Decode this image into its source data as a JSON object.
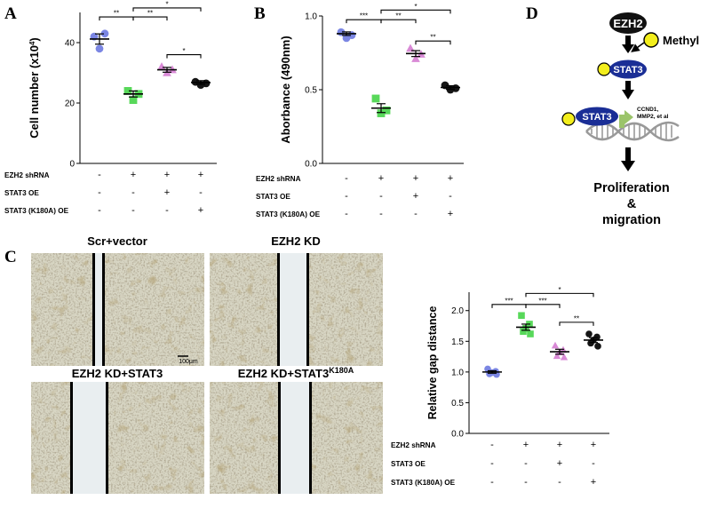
{
  "colors": {
    "blue": "#7b86e3",
    "green": "#58d85a",
    "purple": "#d98ad6",
    "black": "#151515",
    "yellow": "#f3ee1c",
    "navy": "#1a2e96",
    "arrow_green": "#9bc46a"
  },
  "panels": {
    "A": {
      "letter": "A"
    },
    "B": {
      "letter": "B"
    },
    "C": {
      "letter": "C"
    },
    "D": {
      "letter": "D"
    }
  },
  "conditions": {
    "row_labels": [
      "EZH2 shRNA",
      "STAT3 OE",
      "STAT3 (K180A) OE"
    ],
    "marks": [
      [
        "-",
        "+",
        "+",
        "+"
      ],
      [
        "-",
        "-",
        "+",
        "-"
      ],
      [
        "-",
        "-",
        "-",
        "+"
      ]
    ]
  },
  "chart_data": [
    {
      "panel": "A",
      "type": "scatter",
      "ylabel": "Cell number (x10",
      "ylabel_sup": "4",
      "ylabel_close": ")",
      "ylim": [
        0,
        50
      ],
      "yticks": [
        0,
        20,
        40
      ],
      "series": [
        {
          "group": 1,
          "color": "blue",
          "points": [
            42,
            43,
            38
          ],
          "mean": 41.2,
          "sem": 1.7
        },
        {
          "group": 2,
          "color": "green",
          "points": [
            24,
            23,
            21
          ],
          "mean": 23.0,
          "sem": 1.0
        },
        {
          "group": 3,
          "color": "purple",
          "points": [
            32,
            31,
            30
          ],
          "mean": 31.0,
          "sem": 0.8
        },
        {
          "group": 4,
          "color": "black",
          "points": [
            27,
            26.5,
            26
          ],
          "mean": 26.8,
          "sem": 0.6
        }
      ],
      "sig": [
        {
          "from": 1,
          "to": 2,
          "label": "**",
          "y": 48.5
        },
        {
          "from": 2,
          "to": 3,
          "label": "**",
          "y": 48.5
        },
        {
          "from": 2,
          "to": 4,
          "label": "*",
          "y": 51.5
        },
        {
          "from": 3,
          "to": 4,
          "label": "*",
          "y": 36
        }
      ]
    },
    {
      "panel": "B",
      "type": "scatter",
      "ylabel": "Aborbance (490nm)",
      "ylim": [
        0,
        1.0
      ],
      "yticks": [
        "0.0",
        "0.5",
        "1.0"
      ],
      "series": [
        {
          "group": 1,
          "color": "blue",
          "points": [
            0.89,
            0.87,
            0.85
          ],
          "mean": 0.88,
          "sem": 0.012
        },
        {
          "group": 2,
          "color": "green",
          "points": [
            0.44,
            0.36,
            0.34
          ],
          "mean": 0.375,
          "sem": 0.03
        },
        {
          "group": 3,
          "color": "purple",
          "points": [
            0.78,
            0.74,
            0.71
          ],
          "mean": 0.745,
          "sem": 0.02
        },
        {
          "group": 4,
          "color": "black",
          "points": [
            0.53,
            0.51,
            0.5
          ],
          "mean": 0.515,
          "sem": 0.012
        }
      ],
      "sig": [
        {
          "from": 1,
          "to": 2,
          "label": "***",
          "y": 0.975
        },
        {
          "from": 2,
          "to": 3,
          "label": "**",
          "y": 0.975
        },
        {
          "from": 2,
          "to": 4,
          "label": "*",
          "y": 1.04
        },
        {
          "from": 3,
          "to": 4,
          "label": "**",
          "y": 0.83
        }
      ]
    },
    {
      "panel": "C",
      "type": "scatter",
      "ylabel": "Relative gap distance",
      "ylim": [
        0,
        2.3
      ],
      "yticks": [
        "0.0",
        "0.5",
        "1.0",
        "1.5",
        "2.0"
      ],
      "series": [
        {
          "group": 1,
          "color": "blue",
          "points": [
            1.05,
            1.01,
            0.99,
            0.97,
            0.96
          ],
          "mean": 1.0,
          "sem": 0.02
        },
        {
          "group": 2,
          "color": "green",
          "points": [
            1.92,
            1.78,
            1.71,
            1.66,
            1.62
          ],
          "mean": 1.73,
          "sem": 0.05
        },
        {
          "group": 3,
          "color": "purple",
          "points": [
            1.43,
            1.36,
            1.32,
            1.26,
            1.24
          ],
          "mean": 1.33,
          "sem": 0.04
        },
        {
          "group": 4,
          "color": "black",
          "points": [
            1.62,
            1.57,
            1.52,
            1.47,
            1.42
          ],
          "mean": 1.52,
          "sem": 0.04
        }
      ],
      "sig": [
        {
          "from": 1,
          "to": 2,
          "label": "***",
          "y": 2.1
        },
        {
          "from": 2,
          "to": 3,
          "label": "***",
          "y": 2.1
        },
        {
          "from": 2,
          "to": 4,
          "label": "*",
          "y": 2.28
        },
        {
          "from": 3,
          "to": 4,
          "label": "**",
          "y": 1.81
        }
      ]
    }
  ],
  "micrographs": [
    {
      "title": "Scr+vector",
      "sup": "",
      "scale_bar": "100μm"
    },
    {
      "title": "EZH2 KD",
      "sup": "",
      "scale_bar": ""
    },
    {
      "title": "EZH2 KD+STAT3",
      "sup": "",
      "scale_bar": ""
    },
    {
      "title": "EZH2 KD+STAT3",
      "sup": "K180A",
      "scale_bar": ""
    }
  ],
  "diagram": {
    "ezh2": "EZH2",
    "methyl": "Methyl",
    "stat3_top": "STAT3",
    "stat3_dna": "STAT3",
    "targets_line1": "CCND1,",
    "targets_line2": "MMP2, et al",
    "outcome_line1": "Proliferation",
    "outcome_line2": "&",
    "outcome_line3": "migration"
  }
}
